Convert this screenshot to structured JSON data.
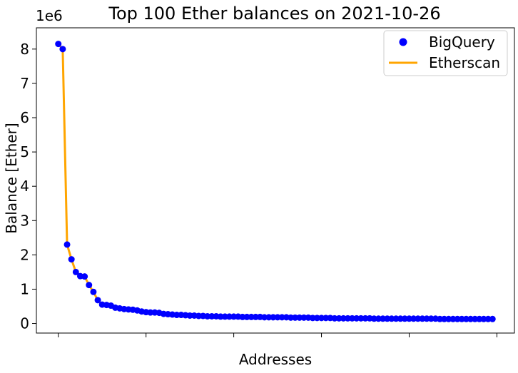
{
  "chart_data": {
    "type": "line",
    "title": "Top 100 Ether balances on 2021-10-26",
    "xlabel": "Addresses",
    "ylabel": "Balance [Ether]",
    "y_offset_text": "1e6",
    "y_ticks": [
      0,
      1,
      2,
      3,
      4,
      5,
      6,
      7,
      8
    ],
    "y_tick_labels": [
      "0",
      "1",
      "2",
      "3",
      "4",
      "5",
      "6",
      "7",
      "8"
    ],
    "x_ticks": [
      0,
      20,
      40,
      60,
      80,
      100
    ],
    "x_tick_labels_visible": false,
    "xlim": [
      -5,
      104
    ],
    "ylim": [
      -0.28,
      8.62
    ],
    "y_scale_factor": 1000000,
    "grid": false,
    "legend_position": "top-right",
    "x": [
      0,
      1,
      2,
      3,
      4,
      5,
      6,
      7,
      8,
      9,
      10,
      11,
      12,
      13,
      14,
      15,
      16,
      17,
      18,
      19,
      20,
      21,
      22,
      23,
      24,
      25,
      26,
      27,
      28,
      29,
      30,
      31,
      32,
      33,
      34,
      35,
      36,
      37,
      38,
      39,
      40,
      41,
      42,
      43,
      44,
      45,
      46,
      47,
      48,
      49,
      50,
      51,
      52,
      53,
      54,
      55,
      56,
      57,
      58,
      59,
      60,
      61,
      62,
      63,
      64,
      65,
      66,
      67,
      68,
      69,
      70,
      71,
      72,
      73,
      74,
      75,
      76,
      77,
      78,
      79,
      80,
      81,
      82,
      83,
      84,
      85,
      86,
      87,
      88,
      89,
      90,
      91,
      92,
      93,
      94,
      95,
      96,
      97,
      98,
      99
    ],
    "series": [
      {
        "name": "BigQuery",
        "style": "marker",
        "color": "#0000ff",
        "values": [
          8.15,
          8.0,
          2.3,
          1.87,
          1.5,
          1.38,
          1.37,
          1.12,
          0.92,
          0.68,
          0.55,
          0.54,
          0.52,
          0.46,
          0.44,
          0.42,
          0.41,
          0.4,
          0.38,
          0.35,
          0.33,
          0.32,
          0.32,
          0.31,
          0.28,
          0.27,
          0.26,
          0.25,
          0.25,
          0.24,
          0.23,
          0.23,
          0.22,
          0.22,
          0.21,
          0.21,
          0.21,
          0.2,
          0.2,
          0.2,
          0.2,
          0.2,
          0.19,
          0.19,
          0.19,
          0.19,
          0.19,
          0.18,
          0.18,
          0.18,
          0.18,
          0.18,
          0.18,
          0.17,
          0.17,
          0.17,
          0.17,
          0.17,
          0.16,
          0.16,
          0.16,
          0.16,
          0.16,
          0.15,
          0.15,
          0.15,
          0.15,
          0.15,
          0.15,
          0.15,
          0.15,
          0.15,
          0.14,
          0.14,
          0.14,
          0.14,
          0.14,
          0.14,
          0.14,
          0.14,
          0.14,
          0.14,
          0.14,
          0.14,
          0.14,
          0.14,
          0.14,
          0.13,
          0.13,
          0.13,
          0.13,
          0.13,
          0.13,
          0.13,
          0.13,
          0.13,
          0.13,
          0.13,
          0.13,
          0.13
        ]
      },
      {
        "name": "Etherscan",
        "style": "line",
        "color": "#ffa500",
        "values": [
          8.15,
          8.0,
          2.3,
          1.87,
          1.5,
          1.38,
          1.37,
          1.12,
          0.92,
          0.68,
          0.55,
          0.54,
          0.52,
          0.46,
          0.44,
          0.42,
          0.41,
          0.4,
          0.38,
          0.35,
          0.33,
          0.32,
          0.32,
          0.31,
          0.28,
          0.27,
          0.26,
          0.25,
          0.25,
          0.24,
          0.23,
          0.23,
          0.22,
          0.22,
          0.21,
          0.21,
          0.21,
          0.2,
          0.2,
          0.2,
          0.2,
          0.2,
          0.19,
          0.19,
          0.19,
          0.19,
          0.19,
          0.18,
          0.18,
          0.18,
          0.18,
          0.18,
          0.18,
          0.17,
          0.17,
          0.17,
          0.17,
          0.17,
          0.16,
          0.16,
          0.16,
          0.16,
          0.16,
          0.15,
          0.15,
          0.15,
          0.15,
          0.15,
          0.15,
          0.15,
          0.15,
          0.15,
          0.14,
          0.14,
          0.14,
          0.14,
          0.14,
          0.14,
          0.14,
          0.14,
          0.14,
          0.14,
          0.14,
          0.14,
          0.14,
          0.14,
          0.14,
          0.13,
          0.13,
          0.13,
          0.13,
          0.13,
          0.13,
          0.13,
          0.13,
          0.13,
          0.13,
          0.13,
          0.13,
          0.13
        ]
      }
    ]
  }
}
